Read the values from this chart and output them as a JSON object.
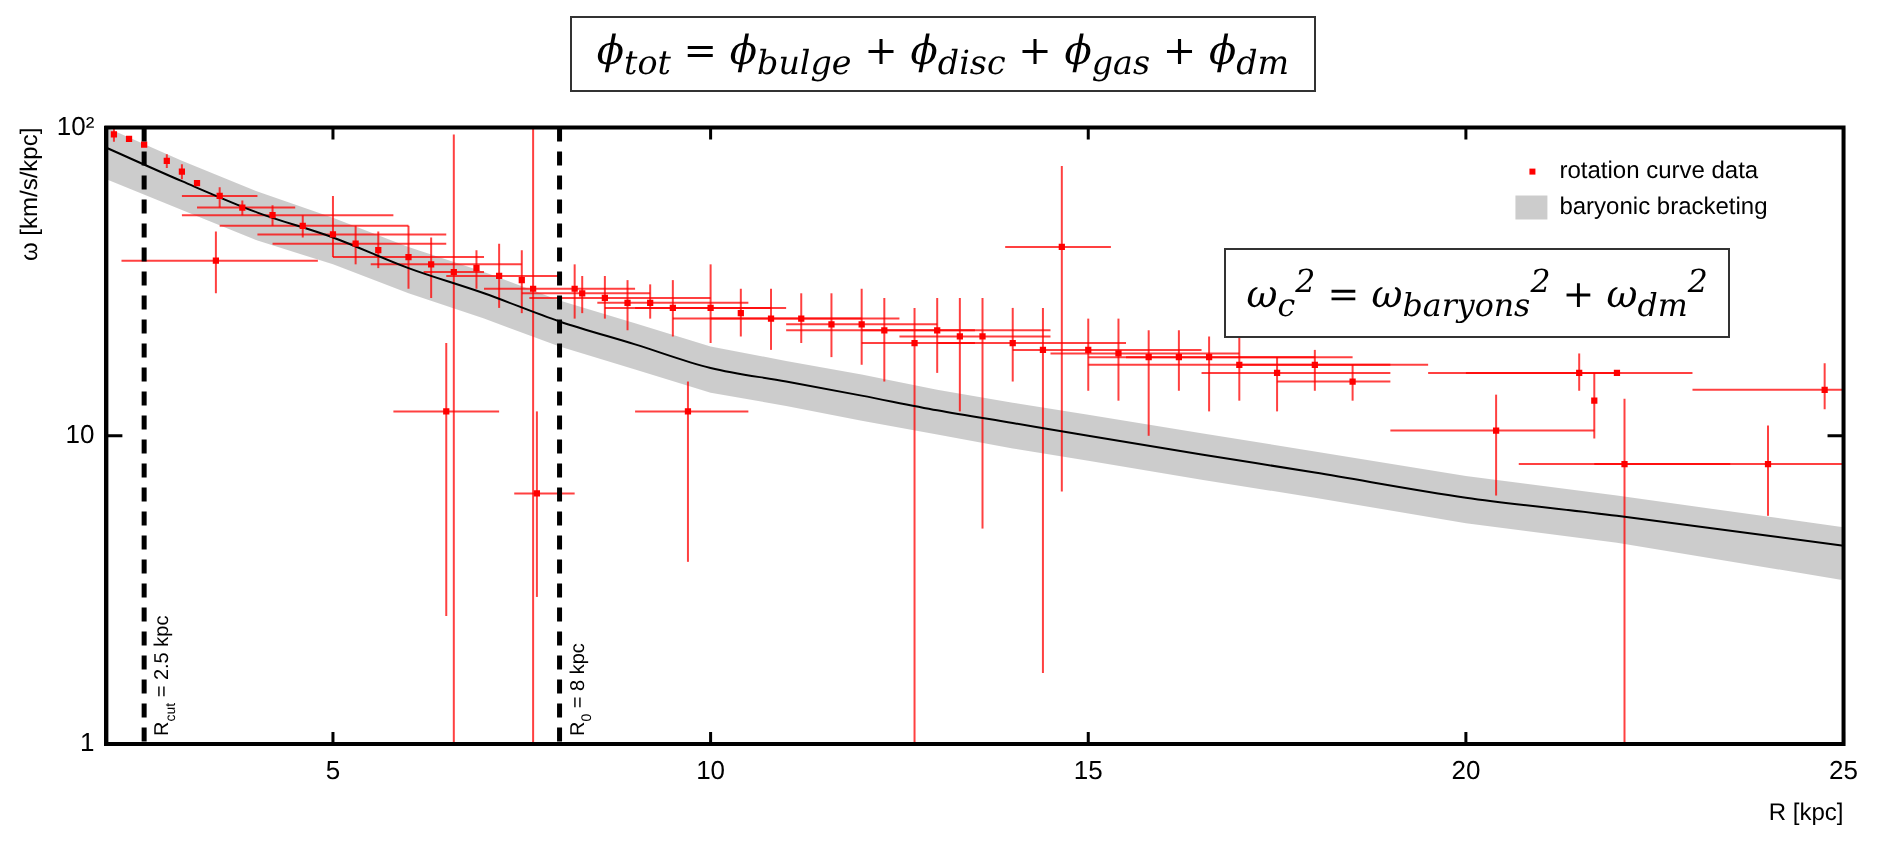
{
  "chart_data": {
    "type": "scatter",
    "title": "ϕ$_{tot}$ = ϕ$_{bulge}$ + ϕ$_{disc}$ + ϕ$_{gas}$ + ϕ$_{dm}$",
    "xlabel": "R [kpc]",
    "ylabel": "ω [km/s/kpc]",
    "log": "y",
    "xlim": [
      2,
      25
    ],
    "xticks": [
      5,
      10,
      15,
      20,
      25
    ],
    "ylim": [
      1,
      100
    ],
    "yticks": [
      1,
      10,
      {
        "value": 100,
        "label": "10²"
      }
    ],
    "grid": false,
    "legend": "top right",
    "marker": "square",
    "annotations": [
      "ω$_{c}$$^{2}$ = ω$_{baryons}$$^{2}$ + ω$_{dm}$$^{2}$"
    ],
    "ref_lines": [
      {
        "axis": "x",
        "value": 2.5,
        "label": "R$_{cut}$ = 2.5 kpc",
        "line_style": "dashed",
        "color": "#000000"
      },
      {
        "axis": "x",
        "value": 8,
        "label": "R$_{0}$ = 8 kpc",
        "line_style": "dashed",
        "color": "#000000"
      }
    ],
    "series": [
      {
        "name": "rotation curve data",
        "type": "scatter",
        "color": "#ff0000",
        "x": [
          2.1,
          2.3,
          2.5,
          2.8,
          3.0,
          3.2,
          3.5,
          3.45,
          3.8,
          4.2,
          4.6,
          5.0,
          5.3,
          5.6,
          6.0,
          6.3,
          6.6,
          6.5,
          6.9,
          7.2,
          7.5,
          7.65,
          7.7,
          8.2,
          8.3,
          8.6,
          8.9,
          9.2,
          9.5,
          9.7,
          10.0,
          10.4,
          10.8,
          11.2,
          11.6,
          12.0,
          12.3,
          12.7,
          13.0,
          13.3,
          13.6,
          14.0,
          14.4,
          14.65,
          15.0,
          15.4,
          15.8,
          16.2,
          16.6,
          17.0,
          17.5,
          18.0,
          18.5,
          20.4,
          21.5,
          21.7,
          22.1,
          22.0,
          24.0,
          24.75
        ],
        "values": [
          95,
          92,
          88,
          78,
          72,
          66,
          60,
          37,
          55,
          52,
          48,
          45,
          42,
          40,
          38,
          36,
          34,
          12,
          35,
          33,
          32,
          30,
          6.5,
          30,
          29,
          28,
          27,
          27,
          26,
          12,
          26,
          25,
          24,
          24,
          23,
          23,
          22,
          20,
          22,
          21,
          21,
          20,
          19,
          41,
          19,
          18.5,
          18,
          18,
          18,
          17,
          16,
          17,
          15,
          10.4,
          16,
          13,
          8.1,
          16,
          8.1,
          14.1
        ],
        "errors": [
          [
            90,
            100
          ],
          null,
          null,
          [
            74,
            82
          ],
          [
            68,
            76
          ],
          null,
          [
            55,
            64
          ],
          [
            29,
            46
          ],
          [
            52,
            58
          ],
          [
            48,
            56
          ],
          [
            44,
            52
          ],
          [
            38,
            60
          ],
          [
            36,
            48
          ],
          [
            35,
            46
          ],
          [
            30,
            48
          ],
          [
            28,
            44
          ],
          [
            1,
            95
          ],
          [
            2.6,
            20
          ],
          [
            30,
            40
          ],
          [
            26,
            42
          ],
          [
            25,
            40
          ],
          [
            1,
            100
          ],
          [
            3,
            12
          ],
          [
            24,
            36
          ],
          [
            25,
            33
          ],
          [
            24,
            33
          ],
          [
            22,
            32
          ],
          [
            24,
            31
          ],
          [
            21,
            32
          ],
          [
            3.9,
            15
          ],
          [
            20,
            36
          ],
          [
            21,
            30
          ],
          [
            19,
            30
          ],
          [
            20,
            29
          ],
          [
            18,
            29
          ],
          [
            17,
            30
          ],
          [
            15,
            28
          ],
          [
            1,
            26
          ],
          [
            16,
            28
          ],
          [
            12,
            28
          ],
          [
            5,
            28
          ],
          [
            15,
            26
          ],
          [
            1.7,
            26
          ],
          [
            6.6,
            75
          ],
          [
            14,
            24
          ],
          [
            13,
            24
          ],
          [
            10,
            22
          ],
          [
            14,
            22
          ],
          [
            12,
            21
          ],
          [
            13,
            21
          ],
          [
            12,
            18
          ],
          [
            14,
            19
          ],
          [
            13,
            17
          ],
          [
            6.4,
            13.6
          ],
          [
            14,
            18.5
          ],
          [
            9.8,
            16
          ],
          [
            1,
            13.2
          ],
          null,
          [
            5.5,
            10.8
          ],
          [
            12.2,
            17.2
          ]
        ],
        "xerrors": [
          null,
          null,
          null,
          null,
          null,
          null,
          [
            3.0,
            4.0
          ],
          [
            2.2,
            4.8
          ],
          [
            3.2,
            4.5
          ],
          [
            3.0,
            5.8
          ],
          [
            3.5,
            6.0
          ],
          [
            4.0,
            6.5
          ],
          [
            4.2,
            6.5
          ],
          null,
          [
            5.0,
            7.0
          ],
          [
            5.5,
            7.5
          ],
          [
            6.2,
            7.0
          ],
          [
            5.8,
            7.2
          ],
          null,
          [
            6.5,
            8.0
          ],
          null,
          null,
          [
            7.4,
            8.2
          ],
          [
            7.0,
            9.0
          ],
          [
            7.5,
            9.2
          ],
          [
            7.6,
            10.0
          ],
          null,
          [
            8.5,
            10.5
          ],
          [
            8.6,
            10.8
          ],
          [
            9.0,
            10.5
          ],
          [
            9.0,
            11.0
          ],
          null,
          [
            9.5,
            12.0
          ],
          [
            10.0,
            12.5
          ],
          null,
          [
            11.0,
            13.0
          ],
          [
            11.0,
            13.5
          ],
          [
            12.0,
            13.5
          ],
          [
            12.0,
            14.5
          ],
          null,
          [
            12.5,
            14.5
          ],
          [
            13.0,
            15.5
          ],
          null,
          [
            13.9,
            15.3
          ],
          [
            14.0,
            16.5
          ],
          [
            14.5,
            17.0
          ],
          null,
          [
            15.0,
            18.0
          ],
          [
            15.5,
            18.5
          ],
          [
            15.0,
            19.0
          ],
          [
            16.5,
            19.0
          ],
          [
            17.0,
            19.5
          ],
          [
            17.5,
            19.0
          ],
          [
            19.0,
            21.7
          ],
          [
            19.5,
            22.0
          ],
          null,
          [
            20.7,
            23.5
          ],
          [
            20.0,
            23.0
          ],
          [
            21.7,
            25.0
          ],
          [
            23.0,
            25.0
          ]
        ]
      },
      {
        "name": "baryonic bracketing",
        "type": "line",
        "color": "#000000",
        "marker": "none",
        "x": [
          2,
          3,
          4,
          5,
          6,
          7,
          8,
          9,
          10,
          11,
          12,
          13,
          14,
          15,
          16.5,
          18,
          20,
          22,
          25
        ],
        "values": [
          86,
          67,
          53,
          44,
          35,
          29,
          23.5,
          19.8,
          16.6,
          15.0,
          13.5,
          12.1,
          11.0,
          10.0,
          8.7,
          7.6,
          6.3,
          5.5,
          4.4
        ],
        "lower": [
          68,
          54,
          43,
          36,
          29,
          24,
          19.5,
          16.4,
          13.8,
          12.5,
          11.2,
          10.1,
          9.1,
          8.3,
          7.2,
          6.3,
          5.2,
          4.5,
          3.4
        ],
        "upper": [
          100,
          78,
          62,
          51,
          41,
          34,
          27.5,
          23.2,
          19.5,
          17.5,
          15.8,
          14.1,
          12.8,
          11.7,
          10.2,
          8.9,
          7.4,
          6.4,
          5.05
        ]
      }
    ]
  }
}
